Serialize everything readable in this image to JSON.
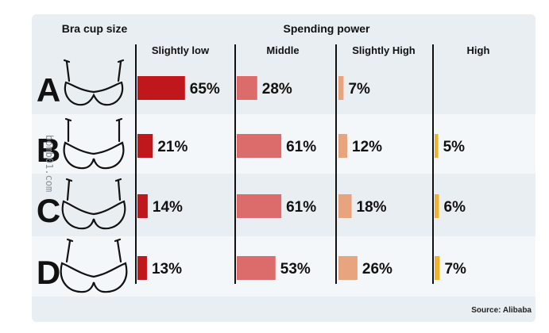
{
  "headers": {
    "cup_label": "Bra cup size",
    "group_label": "Spending power",
    "columns": [
      "Slightly low",
      "Middle",
      "Slightly High",
      "High"
    ]
  },
  "source": "Source: Alibaba",
  "watermark": "bomb01.com",
  "colors": {
    "panel": "#e9eef3",
    "row_alt": "#f4f7f9",
    "divider": "#111111",
    "series": [
      "#c0171c",
      "#dc6b6c",
      "#e7a47f",
      "#f0b42a"
    ]
  },
  "chart_data": {
    "type": "bar",
    "title": "Spending power",
    "categories": [
      "A",
      "B",
      "C",
      "D"
    ],
    "series": [
      {
        "name": "Slightly low",
        "values": [
          65,
          21,
          14,
          13
        ]
      },
      {
        "name": "Middle",
        "values": [
          28,
          61,
          61,
          53
        ]
      },
      {
        "name": "Slightly High",
        "values": [
          7,
          12,
          18,
          26
        ]
      },
      {
        "name": "High",
        "values": [
          null,
          5,
          6,
          7
        ]
      }
    ],
    "value_labels": [
      [
        "65%",
        "21%",
        "14%",
        "13%"
      ],
      [
        "28%",
        "61%",
        "61%",
        "53%"
      ],
      [
        "7%",
        "12%",
        "18%",
        "26%"
      ],
      [
        "",
        "5%",
        "6%",
        "7%"
      ]
    ],
    "unit": "%"
  }
}
